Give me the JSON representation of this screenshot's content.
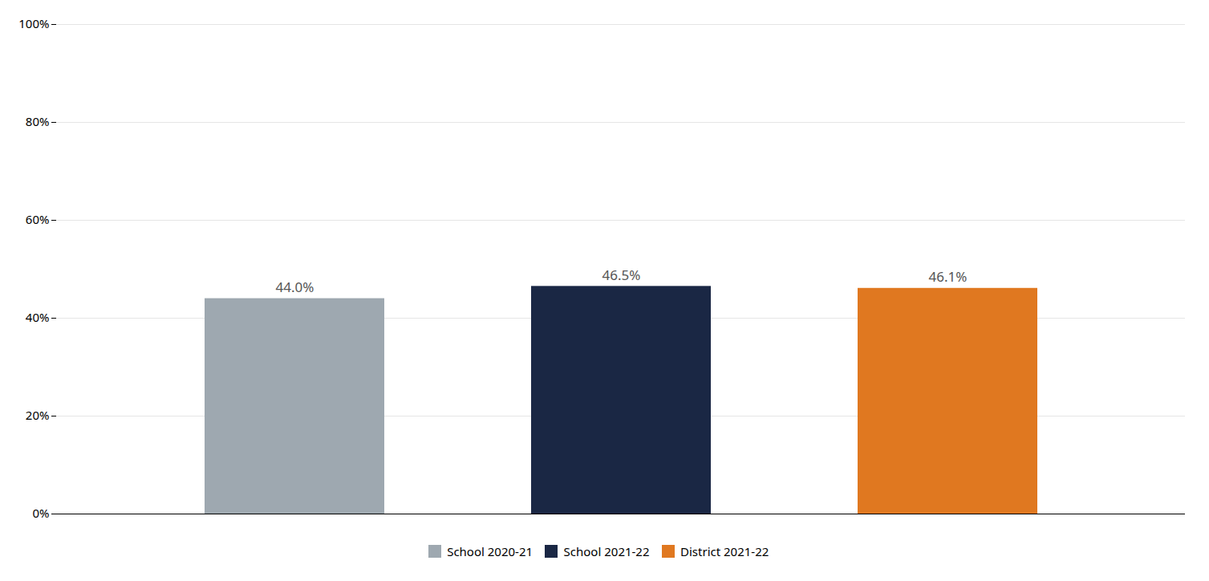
{
  "chart_data": {
    "type": "bar",
    "categories": [
      "School 2020-21",
      "School 2021-22",
      "District 2021-22"
    ],
    "values": [
      44.0,
      46.5,
      46.1
    ],
    "value_labels": [
      "44.0%",
      "46.5%",
      "46.1%"
    ],
    "colors": [
      "#9ea8b0",
      "#1a2744",
      "#e07820"
    ],
    "ylim": [
      0,
      100
    ],
    "yticks": [
      {
        "value": 0,
        "label": "0%"
      },
      {
        "value": 20,
        "label": "20%"
      },
      {
        "value": 40,
        "label": "40%"
      },
      {
        "value": 60,
        "label": "60%"
      },
      {
        "value": 80,
        "label": "80%"
      },
      {
        "value": 100,
        "label": "100%"
      }
    ],
    "grid": true,
    "data_labels": true,
    "tick_labels": "y",
    "legend": "bottom"
  }
}
